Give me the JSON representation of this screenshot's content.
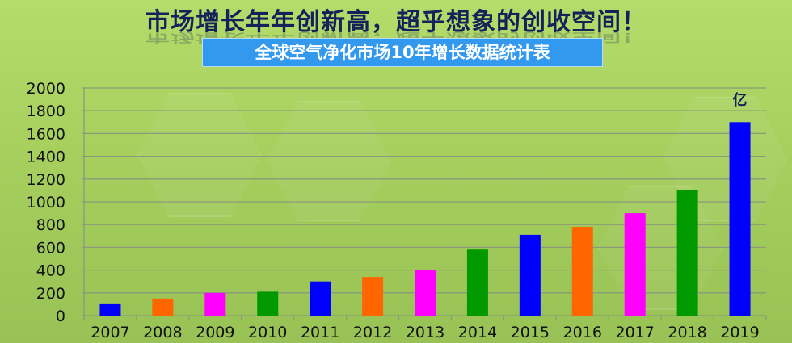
{
  "header": {
    "title": "市场增长年年创新高，超乎想象的创收空间！",
    "subtitle": "全球空气净化市场10年增长数据统计表"
  },
  "chart_data": {
    "type": "bar",
    "title": "全球空气净化市场10年增长数据统计表",
    "categories": [
      "2007",
      "2008",
      "2009",
      "2010",
      "2011",
      "2012",
      "2013",
      "2014",
      "2015",
      "2016",
      "2017",
      "2018",
      "2019"
    ],
    "values": [
      100,
      150,
      200,
      210,
      300,
      340,
      400,
      580,
      710,
      780,
      900,
      1100,
      1700
    ],
    "colors": [
      "#0000ff",
      "#ff6600",
      "#ff00ff",
      "#009900",
      "#0000ff",
      "#ff6600",
      "#ff00ff",
      "#009900",
      "#0000ff",
      "#ff6600",
      "#ff00ff",
      "#009900",
      "#0000ff"
    ],
    "unit_label": "亿",
    "ylim": [
      0,
      2000
    ],
    "yticks": [
      "0",
      "200",
      "400",
      "600",
      "800",
      "1000",
      "1200",
      "1400",
      "1600",
      "1800",
      "2000"
    ],
    "grid": true,
    "xlabel": "",
    "ylabel": ""
  }
}
